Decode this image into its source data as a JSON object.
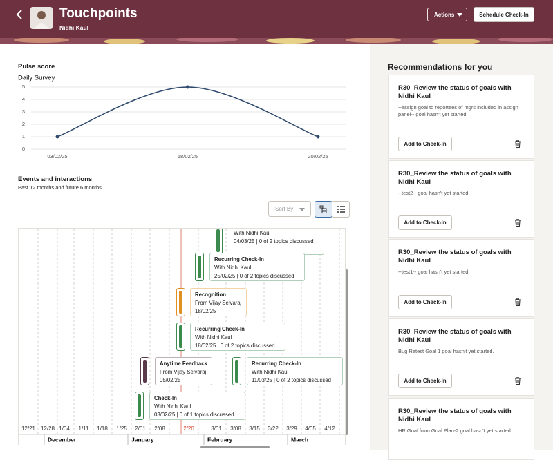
{
  "header": {
    "title": "Touchpoints",
    "subtitle": "Nidhi Kaul",
    "actions_button": "Actions",
    "schedule_button": "Schedule Check-In"
  },
  "pulse_score": {
    "title": "Pulse score",
    "chart_data": {
      "type": "line",
      "title": "Daily Survey",
      "categories": [
        "03/02/25",
        "18/02/25",
        "20/02/25"
      ],
      "values": [
        1,
        5,
        1
      ],
      "color": "#2f4a6d",
      "ylim": [
        0,
        5
      ],
      "yticks": [
        0,
        1,
        2,
        3,
        4,
        5
      ],
      "grid": true
    }
  },
  "events": {
    "title": "Events and interactions",
    "subtitle": "Past 12 months and future 6 months",
    "sort_label": "Sort By",
    "timeline": {
      "ticks": [
        "12/21",
        "12/28",
        "1/04",
        "1/11",
        "1/18",
        "1/25",
        "2/01",
        "2/08",
        "2/20",
        "3/01",
        "3/08",
        "3/15",
        "3/22",
        "3/29",
        "4/05",
        "4/12"
      ],
      "months": [
        "December",
        "January",
        "February",
        "March"
      ],
      "items": [
        {
          "lines": [
            "With Nidhi Kaul",
            "04/03/25 | 0 of 2 topics discussed"
          ],
          "color": "#3d8a4f"
        },
        {
          "lines": [
            "Recurring Check-In",
            "With Nidhi Kaul",
            "25/02/25 | 0 of 2 topics discussed"
          ],
          "color": "#3d8a4f"
        },
        {
          "lines": [
            "Recognition",
            "From Vijay Selvaraj",
            "18/02/25"
          ],
          "color": "#e0901e"
        },
        {
          "lines": [
            "Recurring Check-In",
            "With Nidhi Kaul",
            "18/02/25 | 0 of 2 topics discussed"
          ],
          "color": "#3d8a4f"
        },
        {
          "lines": [
            "Anytime Feedback",
            "From Vijay Selvaraj",
            "05/02/25"
          ],
          "color": "#5a3a4a"
        },
        {
          "lines": [
            "Recurring Check-In",
            "With Nidhi Kaul",
            "11/03/25 | 0 of 2 topics discussed"
          ],
          "color": "#3d8a4f"
        },
        {
          "lines": [
            "Check-In",
            "With Nidhi Kaul",
            "03/02/25 | 0 of 1 topics discussed"
          ],
          "color": "#3d8a4f"
        }
      ]
    }
  },
  "recommendations": {
    "title": "Recommendations for you",
    "cards": [
      {
        "title": "R30_Review the status of goals with Nidhi Kaul",
        "description": "--assign goal to reportees of mgrs included in assign panel-- goal hasn't yet started.",
        "button": "Add to Check-In"
      },
      {
        "title": "R30_Review the status of goals with Nidhi Kaul",
        "description": "--test2-- goal hasn't yet started.",
        "button": "Add to Check-In"
      },
      {
        "title": "R30_Review the status of goals with Nidhi Kaul",
        "description": "--test1-- goal hasn't yet started.",
        "button": "Add to Check-In"
      },
      {
        "title": "R30_Review the status of goals with Nidhi Kaul",
        "description": "Bug Retest Goal 1 goal hasn't yet started.",
        "button": "Add to Check-In"
      },
      {
        "title": "R30_Review the status of goals with Nidhi Kaul",
        "description": "HR Goal from Goal Plan-2 goal hasn't yet started."
      }
    ]
  }
}
